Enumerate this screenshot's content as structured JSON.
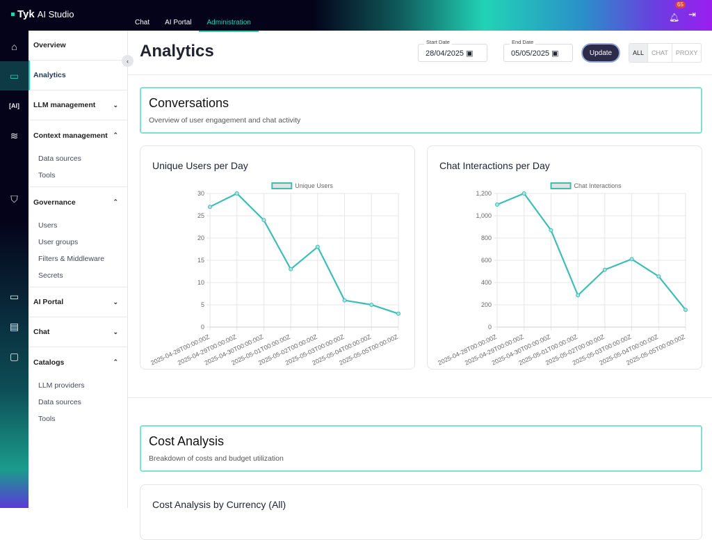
{
  "app": {
    "logo": "Tyk",
    "name": "AI Studio"
  },
  "topnav": [
    {
      "label": "Chat"
    },
    {
      "label": "AI Portal"
    },
    {
      "label": "Administration",
      "active": true
    }
  ],
  "notifications": {
    "count": "65",
    "icon": "bell-icon"
  },
  "rail_icons": [
    "home-icon",
    "analytics-icon",
    "ai-chip-icon",
    "layers-icon",
    "shield-icon",
    "monitor-icon",
    "chat-icon",
    "catalog-icon"
  ],
  "nav": {
    "overview": "Overview",
    "analytics": "Analytics",
    "llm": "LLM management",
    "context": {
      "label": "Context management",
      "items": [
        "Data sources",
        "Tools"
      ]
    },
    "governance": {
      "label": "Governance",
      "items": [
        "Users",
        "User groups",
        "Filters & Middleware",
        "Secrets"
      ]
    },
    "portal": "AI Portal",
    "chat": "Chat",
    "catalogs": {
      "label": "Catalogs",
      "items": [
        "LLM providers",
        "Data sources",
        "Tools"
      ]
    }
  },
  "page": {
    "title": "Analytics",
    "start_label": "Start Date",
    "start": "28/04/2025",
    "end_label": "End Date",
    "end": "05/05/2025",
    "update": "Update",
    "filters": [
      "ALL",
      "CHAT",
      "PROXY"
    ],
    "filter_selected": "ALL"
  },
  "conversations": {
    "title": "Conversations",
    "subtitle": "Overview of user engagement and chat activity"
  },
  "cost": {
    "title": "Cost Analysis",
    "subtitle": "Breakdown of costs and budget utilization",
    "chart_title": "Cost Analysis by Currency (All)"
  },
  "colors": {
    "accent": "#22d3b6",
    "line": "#3dbdb5"
  },
  "chart_data": [
    {
      "type": "line",
      "title": "Unique Users per Day",
      "legend": "top",
      "grid": true,
      "categories": [
        "2025-04-28T00:00:00Z",
        "2025-04-29T00:00:00Z",
        "2025-04-30T00:00:00Z",
        "2025-05-01T00:00:00Z",
        "2025-05-02T00:00:00Z",
        "2025-05-03T00:00:00Z",
        "2025-05-04T00:00:00Z",
        "2025-05-05T00:00:00Z"
      ],
      "series": [
        {
          "name": "Unique Users",
          "values": [
            27,
            30,
            24,
            13,
            18,
            6,
            5,
            3
          ]
        }
      ],
      "ylim": [
        0,
        30
      ],
      "yticks": [
        0,
        5,
        10,
        15,
        20,
        25,
        30
      ],
      "ytick_labels": [
        "0",
        "5",
        "10",
        "15",
        "20",
        "25",
        "30"
      ]
    },
    {
      "type": "line",
      "title": "Chat Interactions per Day",
      "legend": "top",
      "grid": true,
      "categories": [
        "2025-04-28T00:00:00Z",
        "2025-04-29T00:00:00Z",
        "2025-04-30T00:00:00Z",
        "2025-05-01T00:00:00Z",
        "2025-05-02T00:00:00Z",
        "2025-05-03T00:00:00Z",
        "2025-05-04T00:00:00Z",
        "2025-05-05T00:00:00Z"
      ],
      "series": [
        {
          "name": "Chat Interactions",
          "values": [
            1100,
            1200,
            870,
            285,
            515,
            610,
            455,
            155
          ]
        }
      ],
      "ylim": [
        0,
        1200
      ],
      "yticks": [
        0,
        200,
        400,
        600,
        800,
        1000,
        1200
      ],
      "ytick_labels": [
        "0",
        "200",
        "400",
        "600",
        "800",
        "1,000",
        "1,200"
      ]
    }
  ]
}
